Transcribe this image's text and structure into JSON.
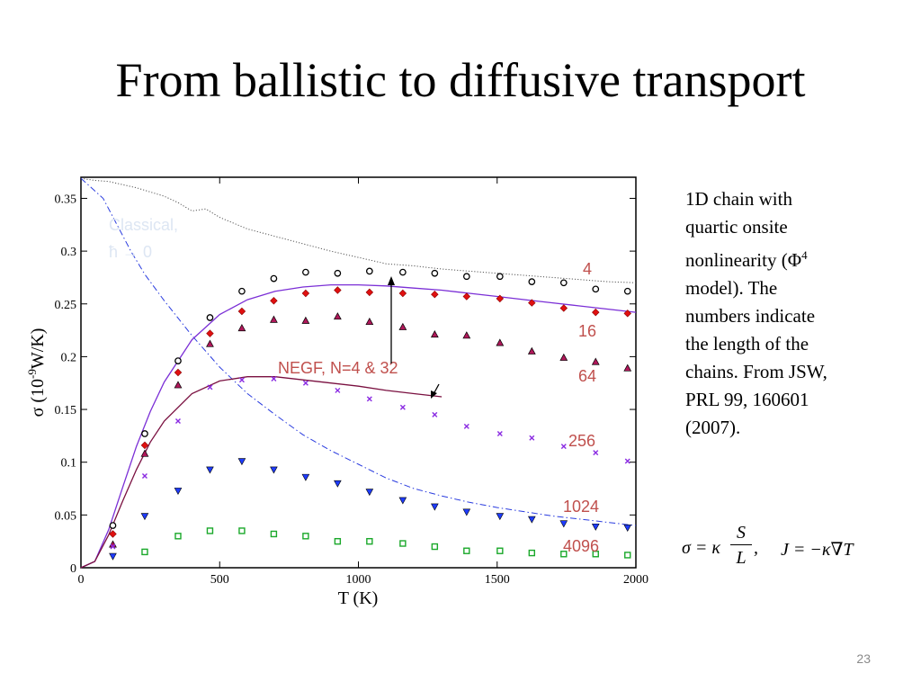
{
  "slide": {
    "title": "From ballistic to diffusive transport",
    "description_lines": [
      "1D chain with",
      "quartic onsite",
      "nonlinearity (Φ",
      "4",
      "model). The",
      "numbers indicate",
      "the length of the",
      "chains. From JSW,",
      "PRL 99, 160601",
      "(2007)."
    ],
    "formula": {
      "lhs": "σ = κ",
      "frac_num": "S",
      "frac_den": "L",
      "comma": ",",
      "rhs": "J = −κ∇T"
    },
    "page_number": "23"
  },
  "colors": {
    "n4": "#e01010",
    "n16": "#b0185a",
    "n64": "#8a2be2",
    "n256": "#9a1fa8",
    "n1024": "#1e3cff",
    "n4096": "#1aa82a",
    "classical": "#555555",
    "ballistic": "#2a3cdf",
    "negf": "#7a1040",
    "negf_purple": "#7b2fd6",
    "label": "#c0504d",
    "faded": "#dde6f3",
    "edge": "#000000"
  },
  "chart_data": {
    "type": "scatter",
    "title": "",
    "xlabel": "T (K)",
    "ylabel": "σ (10",
    "ylabel_sup": "-9",
    "ylabel_tail": "W/K)",
    "xlim": [
      0,
      2000
    ],
    "ylim": [
      0,
      0.37
    ],
    "xticks": [
      0,
      500,
      1000,
      1500,
      2000
    ],
    "xtick_labels": [
      "0",
      "500",
      "1000",
      "1500",
      "2000"
    ],
    "yticks": [
      0,
      0.05,
      0.1,
      0.15,
      0.2,
      0.25,
      0.3,
      0.35
    ],
    "ytick_labels": [
      "0",
      "0.05",
      "0.1",
      "0.15",
      "0.2",
      "0.25",
      "0.3",
      "0.35"
    ],
    "grid": false,
    "x": [
      115,
      230,
      350,
      465,
      580,
      695,
      810,
      925,
      1040,
      1160,
      1275,
      1390,
      1510,
      1625,
      1740,
      1855,
      1970
    ],
    "series": [
      {
        "label": "4",
        "marker": "circle",
        "color_key": "edge",
        "values": [
          0.04,
          0.127,
          0.196,
          0.237,
          0.262,
          0.274,
          0.28,
          0.279,
          0.281,
          0.28,
          0.279,
          0.276,
          0.276,
          0.271,
          0.27,
          0.264,
          0.262
        ]
      },
      {
        "label": "16",
        "marker": "diamond",
        "color_key": "n4",
        "values": [
          0.032,
          0.116,
          0.185,
          0.222,
          0.243,
          0.253,
          0.26,
          0.263,
          0.261,
          0.26,
          0.259,
          0.257,
          0.255,
          0.251,
          0.246,
          0.242,
          0.241
        ]
      },
      {
        "label": "64",
        "marker": "triangle-up",
        "color_key": "n16",
        "values": [
          0.022,
          0.108,
          0.173,
          0.212,
          0.227,
          0.235,
          0.234,
          0.238,
          0.233,
          0.228,
          0.221,
          0.22,
          0.213,
          0.205,
          0.199,
          0.195,
          0.189
        ]
      },
      {
        "label": "256",
        "marker": "x",
        "color_key": "n64",
        "values": [
          0.02,
          0.087,
          0.139,
          0.171,
          0.178,
          0.179,
          0.175,
          0.168,
          0.16,
          0.152,
          0.145,
          0.134,
          0.127,
          0.123,
          0.115,
          0.109,
          0.101
        ]
      },
      {
        "label": "1024",
        "marker": "triangle-down",
        "color_key": "n1024",
        "values": [
          0.011,
          0.049,
          0.073,
          0.093,
          0.101,
          0.093,
          0.086,
          0.08,
          0.072,
          0.064,
          0.058,
          0.053,
          0.049,
          0.046,
          0.042,
          0.039,
          0.038
        ]
      },
      {
        "label": "4096",
        "marker": "square",
        "color_key": "n4096",
        "values": [
          null,
          0.015,
          0.03,
          0.035,
          0.035,
          0.032,
          0.03,
          0.025,
          0.025,
          0.023,
          0.02,
          0.016,
          0.016,
          0.014,
          0.013,
          0.013,
          0.012
        ]
      }
    ],
    "curves": [
      {
        "name": "classical",
        "style": "dotted",
        "color_key": "classical",
        "x": [
          0,
          50,
          100,
          200,
          300,
          350,
          400,
          450,
          500,
          600,
          700,
          800,
          900,
          1000,
          1100,
          1200,
          1300,
          1400,
          1500,
          1600,
          1700,
          1800,
          1900,
          2000
        ],
        "y": [
          0.369,
          0.367,
          0.366,
          0.36,
          0.352,
          0.346,
          0.338,
          0.34,
          0.332,
          0.321,
          0.314,
          0.307,
          0.3,
          0.294,
          0.288,
          0.286,
          0.283,
          0.281,
          0.279,
          0.277,
          0.275,
          0.273,
          0.271,
          0.27
        ]
      },
      {
        "name": "ballistic-decay",
        "style": "dashdot",
        "color_key": "ballistic",
        "x": [
          0,
          80,
          130,
          180,
          230,
          300,
          400,
          500,
          600,
          700,
          800,
          900,
          1000,
          1100,
          1200,
          1300,
          1400,
          1500,
          1600,
          1700,
          1800,
          1900,
          2000
        ],
        "y": [
          0.369,
          0.35,
          0.325,
          0.3,
          0.278,
          0.253,
          0.22,
          0.19,
          0.165,
          0.145,
          0.126,
          0.111,
          0.098,
          0.085,
          0.075,
          0.068,
          0.062,
          0.057,
          0.053,
          0.049,
          0.046,
          0.043,
          0.04
        ]
      },
      {
        "name": "negf-n4",
        "style": "solid",
        "color_key": "negf_purple",
        "x": [
          0,
          50,
          100,
          150,
          200,
          250,
          300,
          400,
          500,
          600,
          700,
          800,
          900,
          1000,
          1100,
          1200,
          1300,
          1400,
          1500,
          1600,
          1700,
          1800,
          1900,
          2000
        ],
        "y": [
          0,
          0.006,
          0.036,
          0.076,
          0.115,
          0.148,
          0.176,
          0.216,
          0.24,
          0.254,
          0.262,
          0.266,
          0.268,
          0.268,
          0.267,
          0.265,
          0.263,
          0.26,
          0.257,
          0.254,
          0.251,
          0.248,
          0.245,
          0.242
        ]
      },
      {
        "name": "negf-n32",
        "style": "solid",
        "color_key": "negf",
        "x": [
          0,
          50,
          100,
          150,
          200,
          250,
          300,
          400,
          500,
          600,
          700,
          800,
          900,
          1000,
          1100,
          1200,
          1300
        ],
        "y": [
          0,
          0.006,
          0.031,
          0.063,
          0.093,
          0.119,
          0.139,
          0.165,
          0.177,
          0.181,
          0.181,
          0.178,
          0.175,
          0.172,
          0.168,
          0.165,
          0.162
        ]
      }
    ],
    "annotations": {
      "classical_line1": "Classical,",
      "classical_line2": "ħ → 0",
      "negf_label": "NEGF, N=4 & 32",
      "series_labels": [
        "4",
        "16",
        "64",
        "256",
        "1024",
        "4096"
      ]
    }
  }
}
